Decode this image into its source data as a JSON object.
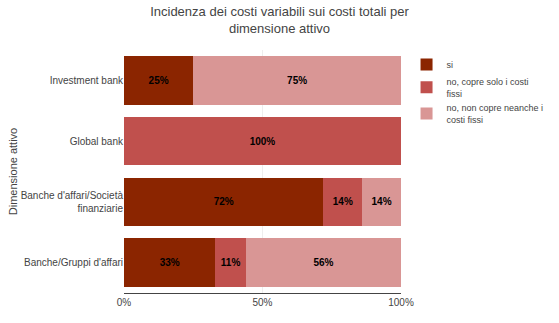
{
  "chart_data": {
    "type": "bar",
    "orientation": "horizontal",
    "stacked": true,
    "title": "Incidenza dei costi variabili sui costi totali per\ndimensione attivo",
    "ylabel": "Dimensione attivo",
    "categories": [
      "Banche/Gruppi d'affari",
      "Banche d'affari/Società\nfinanziarie",
      "Global bank",
      "Investment bank"
    ],
    "series": [
      {
        "name": "si",
        "color": "#8B2500",
        "values": [
          33,
          72,
          0,
          25
        ],
        "value_labels": [
          "33%",
          "72%",
          null,
          "25%"
        ]
      },
      {
        "name": "no, copre solo i costi\nfissi",
        "color": "#C0504D",
        "values": [
          11,
          14,
          100,
          0
        ],
        "value_labels": [
          "11%",
          "14%",
          "100%",
          null
        ]
      },
      {
        "name": "no, non copre neanche i\ncosti fissi",
        "color": "#D99695",
        "values": [
          56,
          14,
          0,
          75
        ],
        "value_labels": [
          "56%",
          "14%",
          null,
          "75%"
        ]
      }
    ],
    "xlim": [
      0,
      100
    ],
    "xticks": [
      {
        "value": 0,
        "label": "0%"
      },
      {
        "value": 50,
        "label": "50%"
      },
      {
        "value": 100,
        "label": "100%"
      }
    ],
    "data_labels": true,
    "grid": true,
    "legend": "right"
  }
}
